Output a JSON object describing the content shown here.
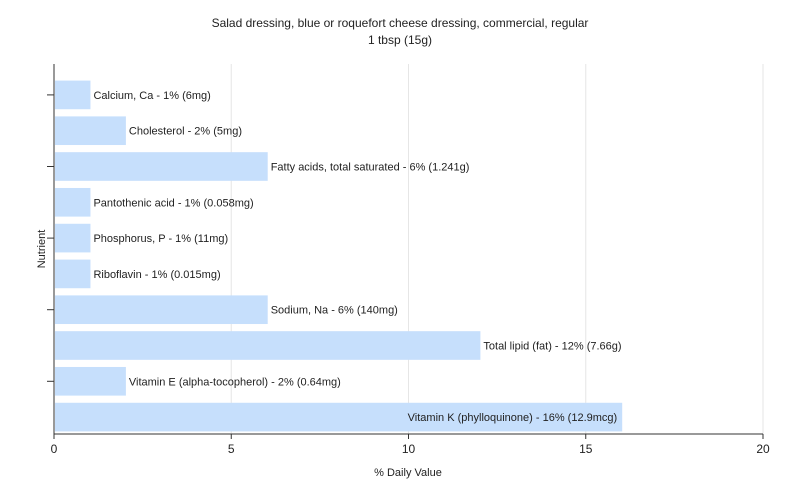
{
  "chart_data": {
    "type": "bar",
    "orientation": "horizontal",
    "title": "Salad dressing, blue or roquefort cheese dressing, commercial, regular",
    "subtitle": "1 tbsp (15g)",
    "xlabel": "% Daily Value",
    "ylabel": "Nutrient",
    "xlim": [
      0,
      20
    ],
    "xticks": [
      0,
      5,
      10,
      15,
      20
    ],
    "grid": true,
    "bar_color": "#c6dffc",
    "categories": [
      "Calcium, Ca",
      "Cholesterol",
      "Fatty acids, total saturated",
      "Pantothenic acid",
      "Phosphorus, P",
      "Riboflavin",
      "Sodium, Na",
      "Total lipid (fat)",
      "Vitamin E (alpha-tocopherol)",
      "Vitamin K (phylloquinone)"
    ],
    "values": [
      1,
      2,
      6,
      1,
      1,
      1,
      6,
      12,
      2,
      16
    ],
    "labels": [
      "Calcium, Ca - 1% (6mg)",
      "Cholesterol - 2% (5mg)",
      "Fatty acids, total saturated - 6% (1.241g)",
      "Pantothenic acid - 1% (0.058mg)",
      "Phosphorus, P - 1% (11mg)",
      "Riboflavin - 1% (0.015mg)",
      "Sodium, Na - 6% (140mg)",
      "Total lipid (fat) - 12% (7.66g)",
      "Vitamin E (alpha-tocopherol) - 2% (0.64mg)",
      "Vitamin K (phylloquinone) - 16% (12.9mcg)"
    ]
  }
}
